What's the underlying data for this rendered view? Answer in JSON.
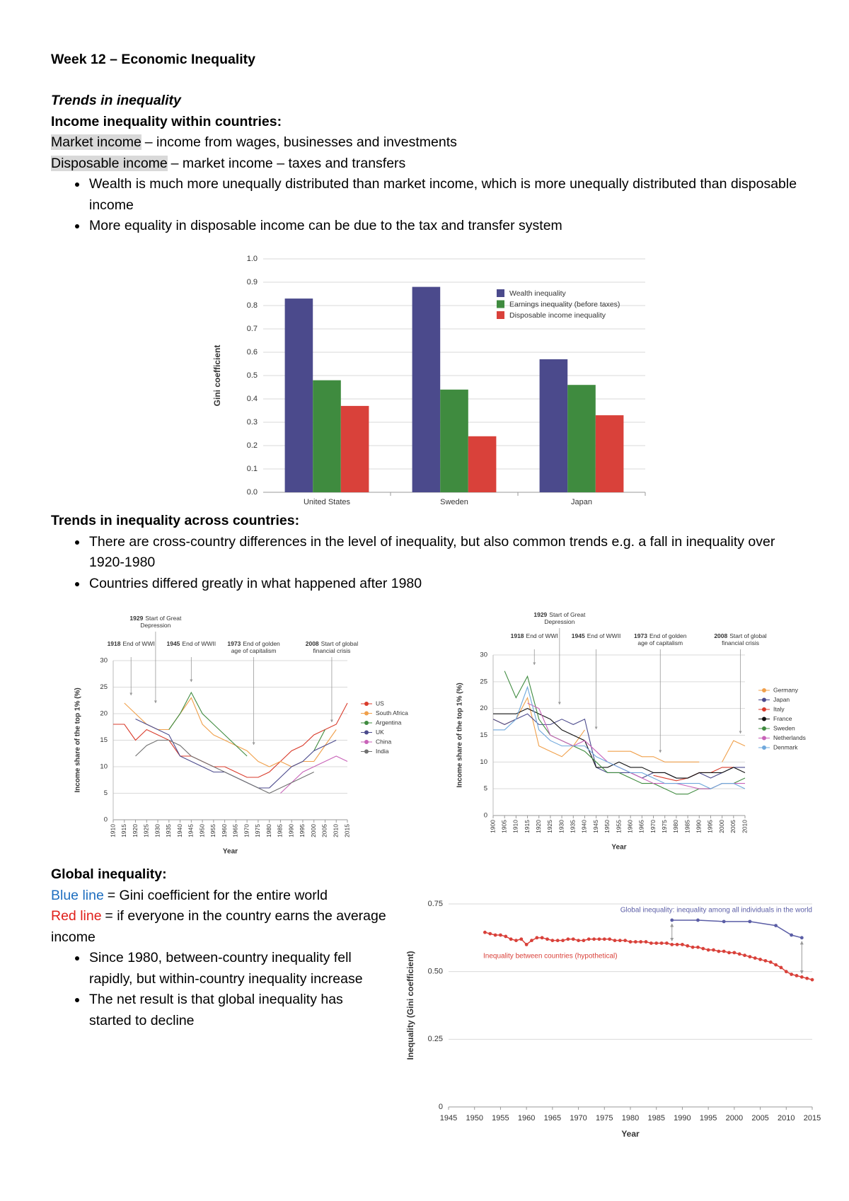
{
  "title": "Week 12 – Economic Inequality",
  "section_title": "Trends in inequality",
  "within": {
    "heading": "Income inequality within countries:",
    "definitions": [
      {
        "term": "Market income",
        "text": "– income from wages, businesses and investments",
        "highlight": "#d9d9d9"
      },
      {
        "term": "Disposable income",
        "text": "– market income – taxes and transfers",
        "highlight": "#d9d9d9"
      }
    ],
    "bullets": [
      "Wealth is much more unequally distributed than market income, which is more unequally distributed than disposable income",
      "More equality in disposable income can be due to the tax and transfer system"
    ]
  },
  "across": {
    "heading": "Trends in inequality across countries:",
    "bullets": [
      "There are cross-country differences in the level of inequality, but also common trends e.g. a fall in inequality over 1920-1980",
      "Countries differed greatly in what happened after 1980"
    ]
  },
  "global": {
    "heading": "Global inequality:",
    "definitions": [
      {
        "term": "Blue line",
        "text": "= Gini coefficient for the entire world",
        "color": "#1f6fc0"
      },
      {
        "term": "Red line",
        "text": "= if everyone in the country earns the average income",
        "color": "#e0201b"
      }
    ],
    "bullets": [
      "Since 1980, between-country inequality fell rapidly, but within-country inequality increase",
      "The net result is that global inequality has started to decline"
    ]
  },
  "chart_data": [
    {
      "type": "bar",
      "y_label": "Gini coefficient",
      "categories": [
        "United States",
        "Sweden",
        "Japan"
      ],
      "series": [
        {
          "name": "Wealth inequality",
          "color": "#4b4a8c",
          "values": [
            0.83,
            0.88,
            0.57
          ]
        },
        {
          "name": "Earnings inequality (before taxes)",
          "color": "#3f8b3f",
          "values": [
            0.48,
            0.44,
            0.46
          ]
        },
        {
          "name": "Disposable income inequality",
          "color": "#d9413a",
          "values": [
            0.37,
            0.24,
            0.33
          ]
        }
      ],
      "ylim": [
        0,
        1
      ],
      "yticks": [
        {
          "value": 0,
          "label": "0.0"
        },
        0.1,
        0.2,
        0.3,
        0.4,
        0.5,
        0.6,
        0.7,
        0.8,
        0.9,
        {
          "value": 1,
          "label": "1.0"
        }
      ],
      "grid": true,
      "legend": "upper right"
    },
    {
      "type": "line",
      "y_label": "Income share of the top 1% (%)",
      "x_label": "Year",
      "x": [
        1910,
        1915,
        1920,
        1925,
        1930,
        1935,
        1940,
        1945,
        1950,
        1955,
        1960,
        1965,
        1970,
        1975,
        1980,
        1985,
        1990,
        1995,
        2000,
        2005,
        2010,
        2015
      ],
      "series": [
        {
          "name": "US",
          "color": "#d93b2b",
          "values": [
            18,
            18,
            15,
            17,
            16,
            15,
            12,
            12,
            11,
            10,
            10,
            9,
            8,
            8,
            9,
            11,
            13,
            14,
            16,
            17,
            18,
            22
          ]
        },
        {
          "name": "South Africa",
          "color": "#f0a04b",
          "values": [
            null,
            22,
            20,
            18,
            17,
            17,
            20,
            23,
            18,
            16,
            15,
            14,
            13,
            11,
            10,
            11,
            10,
            11,
            11,
            14,
            17,
            null
          ]
        },
        {
          "name": "Argentina",
          "color": "#3f8b3f",
          "values": [
            null,
            null,
            null,
            null,
            null,
            17,
            20,
            24,
            20,
            18,
            16,
            14,
            12,
            null,
            null,
            null,
            null,
            null,
            13,
            17,
            null,
            null
          ]
        },
        {
          "name": "UK",
          "color": "#4b4a8c",
          "values": [
            null,
            null,
            19,
            18,
            17,
            16,
            12,
            11,
            10,
            9,
            9,
            8,
            7,
            6,
            6,
            8,
            10,
            11,
            13,
            14,
            15,
            null
          ]
        },
        {
          "name": "China",
          "color": "#c862b8",
          "values": [
            null,
            null,
            null,
            null,
            null,
            null,
            null,
            null,
            null,
            null,
            null,
            null,
            null,
            null,
            null,
            5,
            7,
            9,
            10,
            11,
            12,
            11
          ]
        },
        {
          "name": "India",
          "color": "#707070",
          "values": [
            null,
            null,
            12,
            14,
            15,
            15,
            14,
            12,
            11,
            10,
            9,
            8,
            7,
            6,
            5,
            6,
            7,
            8,
            9,
            null,
            null,
            null
          ]
        }
      ],
      "xlim": [
        1910,
        2015
      ],
      "xticks": [
        1910,
        1915,
        1920,
        1925,
        1930,
        1935,
        1940,
        1945,
        1950,
        1955,
        1960,
        1965,
        1970,
        1975,
        1980,
        1985,
        1990,
        1995,
        2000,
        2005,
        2010,
        2015
      ],
      "ylim": [
        0,
        30
      ],
      "yticks": [
        0,
        5,
        10,
        15,
        20,
        25,
        30
      ],
      "grid": true,
      "legend": "right",
      "annotations": [
        {
          "year": 1918,
          "text": "End of WWI"
        },
        {
          "year": 1929,
          "text": "Start of Great Depression"
        },
        {
          "year": 1945,
          "text": "End of WWII"
        },
        {
          "year": 1973,
          "text": "End of golden age of capitalism"
        },
        {
          "year": 2008,
          "text": "Start of global financial crisis"
        }
      ]
    },
    {
      "type": "line",
      "y_label": "Income share of the top 1% (%)",
      "x_label": "Year",
      "x": [
        1900,
        1905,
        1910,
        1915,
        1920,
        1925,
        1930,
        1935,
        1940,
        1945,
        1950,
        1955,
        1960,
        1965,
        1970,
        1975,
        1980,
        1985,
        1990,
        1995,
        2000,
        2005,
        2010
      ],
      "series": [
        {
          "name": "Germany",
          "color": "#f0a04b",
          "values": [
            18,
            17,
            18,
            22,
            13,
            12,
            11,
            13,
            16,
            null,
            12,
            12,
            12,
            11,
            11,
            10,
            10,
            10,
            10,
            null,
            10,
            14,
            13
          ]
        },
        {
          "name": "Japan",
          "color": "#4b4a8c",
          "values": [
            18,
            17,
            18,
            19,
            17,
            17,
            18,
            17,
            18,
            9,
            8,
            8,
            8,
            7,
            8,
            8,
            7,
            7,
            8,
            7,
            8,
            9,
            9
          ]
        },
        {
          "name": "Italy",
          "color": "#d93b2b",
          "values": [
            null,
            null,
            null,
            null,
            null,
            null,
            null,
            null,
            null,
            null,
            null,
            null,
            null,
            null,
            7.5,
            7,
            6.5,
            7,
            8,
            8,
            9,
            9,
            null
          ]
        },
        {
          "name": "France",
          "color": "#111111",
          "values": [
            19,
            19,
            19,
            20,
            19,
            18,
            16,
            15,
            14,
            9,
            9,
            10,
            9,
            9,
            8,
            8,
            7,
            7,
            8,
            8,
            8,
            9,
            8
          ]
        },
        {
          "name": "Sweden",
          "color": "#3f8b3f",
          "values": [
            null,
            27,
            22,
            26,
            18,
            15,
            14,
            13,
            12,
            10,
            8,
            8,
            7,
            6,
            6,
            5,
            4,
            4,
            5,
            5,
            6,
            6,
            7
          ]
        },
        {
          "name": "Netherlands",
          "color": "#c862b8",
          "values": [
            null,
            null,
            null,
            21,
            20,
            15,
            14,
            13,
            14,
            12,
            10,
            9,
            8,
            7,
            6,
            6,
            6,
            5.5,
            5,
            5,
            6,
            6,
            6
          ]
        },
        {
          "name": "Denmark",
          "color": "#6fa8dc",
          "values": [
            16,
            16,
            18,
            24,
            16,
            14,
            13,
            13,
            13,
            11,
            10,
            9,
            8,
            8,
            7,
            6,
            6,
            6,
            6,
            5,
            6,
            6,
            5
          ]
        }
      ],
      "xlim": [
        1900,
        2010
      ],
      "xticks": [
        1900,
        1905,
        1910,
        1915,
        1920,
        1925,
        1930,
        1935,
        1940,
        1945,
        1950,
        1955,
        1960,
        1965,
        1970,
        1975,
        1980,
        1985,
        1990,
        1995,
        2000,
        2005,
        2010
      ],
      "ylim": [
        0,
        30
      ],
      "yticks": [
        0,
        5,
        10,
        15,
        20,
        25,
        30
      ],
      "grid": true,
      "legend": "right",
      "annotations": [
        {
          "year": 1918,
          "text": "End of WWI"
        },
        {
          "year": 1929,
          "text": "Start of Great Depression"
        },
        {
          "year": 1945,
          "text": "End of WWII"
        },
        {
          "year": 1973,
          "text": "End of golden age of capitalism"
        },
        {
          "year": 2008,
          "text": "Start of global financial crisis"
        }
      ]
    },
    {
      "type": "line",
      "y_label": "Inequality (Gini coefficient)",
      "x_label": "Year",
      "series": [
        {
          "name": "Global inequality: inequality among all individuals in the world",
          "color": "#5b5ea6",
          "x": [
            1988,
            1993,
            1998,
            2003,
            2008,
            2011,
            2013
          ],
          "values": [
            0.69,
            0.69,
            0.685,
            0.685,
            0.67,
            0.635,
            0.625
          ]
        },
        {
          "name": "Inequality between countries (hypothetical)",
          "color": "#d9413a",
          "x": [
            1952,
            1953,
            1954,
            1955,
            1956,
            1957,
            1958,
            1959,
            1960,
            1961,
            1962,
            1963,
            1964,
            1965,
            1966,
            1967,
            1968,
            1969,
            1970,
            1971,
            1972,
            1973,
            1974,
            1975,
            1976,
            1977,
            1978,
            1979,
            1980,
            1981,
            1982,
            1983,
            1984,
            1985,
            1986,
            1987,
            1988,
            1989,
            1990,
            1991,
            1992,
            1993,
            1994,
            1995,
            1996,
            1997,
            1998,
            1999,
            2000,
            2001,
            2002,
            2003,
            2004,
            2005,
            2006,
            2007,
            2008,
            2009,
            2010,
            2011,
            2012,
            2013,
            2014,
            2015
          ],
          "values": [
            0.645,
            0.64,
            0.635,
            0.635,
            0.63,
            0.62,
            0.615,
            0.62,
            0.6,
            0.615,
            0.625,
            0.625,
            0.62,
            0.615,
            0.615,
            0.615,
            0.62,
            0.62,
            0.615,
            0.615,
            0.62,
            0.62,
            0.62,
            0.62,
            0.62,
            0.615,
            0.615,
            0.615,
            0.61,
            0.61,
            0.61,
            0.61,
            0.605,
            0.605,
            0.605,
            0.605,
            0.6,
            0.6,
            0.6,
            0.595,
            0.59,
            0.59,
            0.585,
            0.58,
            0.58,
            0.575,
            0.575,
            0.57,
            0.57,
            0.565,
            0.56,
            0.555,
            0.55,
            0.545,
            0.54,
            0.535,
            0.525,
            0.515,
            0.5,
            0.49,
            0.485,
            0.48,
            0.475,
            0.47
          ]
        }
      ],
      "xlim": [
        1945,
        2015
      ],
      "xticks": [
        1945,
        1950,
        1955,
        1960,
        1965,
        1970,
        1975,
        1980,
        1985,
        1990,
        1995,
        2000,
        2005,
        2010,
        2015
      ],
      "ylim": [
        0,
        0.75
      ],
      "yticks": [
        0,
        0.25,
        {
          "value": 0.5,
          "label": "0.50"
        },
        0.75
      ],
      "grid": true
    }
  ]
}
